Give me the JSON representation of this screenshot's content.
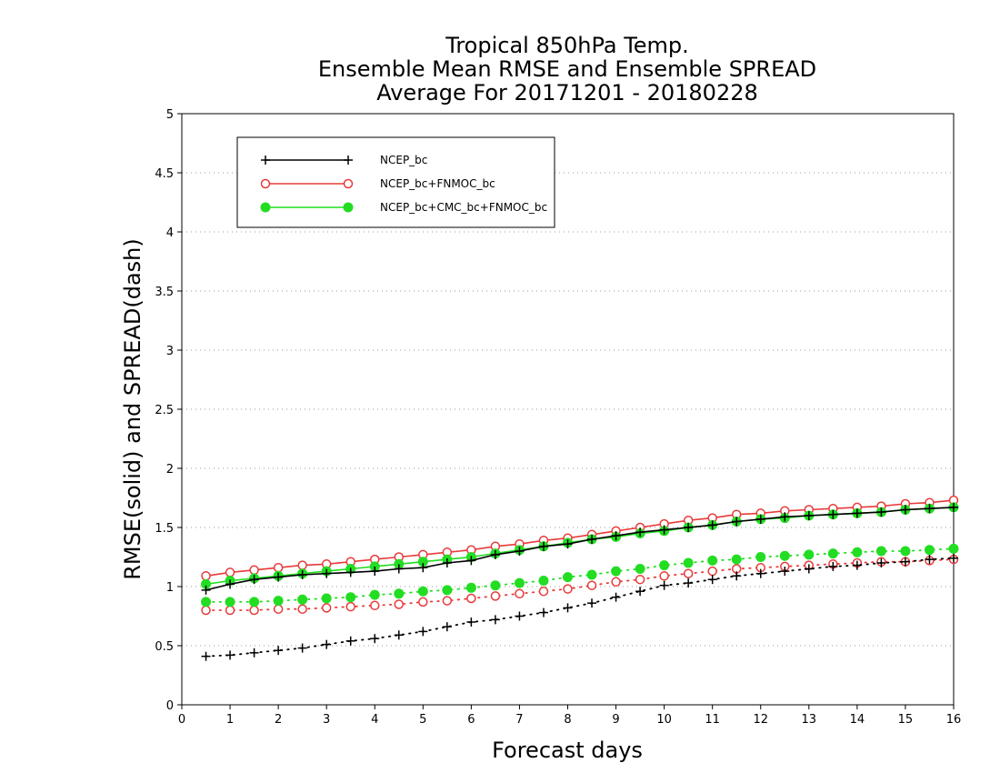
{
  "chart_data": {
    "type": "line",
    "title_lines": [
      "Tropical 850hPa Temp.",
      "Ensemble Mean RMSE and Ensemble SPREAD",
      "Average For 20171201 - 20180228"
    ],
    "xlabel": "Forecast days",
    "ylabel": "RMSE(solid) and SPREAD(dash)",
    "xlim": [
      0,
      16
    ],
    "ylim": [
      0,
      5
    ],
    "x_ticks": [
      0,
      1,
      2,
      3,
      4,
      5,
      6,
      7,
      8,
      9,
      10,
      11,
      12,
      13,
      14,
      15,
      16
    ],
    "y_ticks": [
      0,
      0.5,
      1,
      1.5,
      2,
      2.5,
      3,
      3.5,
      4,
      4.5,
      5
    ],
    "grid": "horizontal dotted",
    "legend_position": "top-left",
    "x": [
      0.5,
      1,
      1.5,
      2,
      2.5,
      3,
      3.5,
      4,
      4.5,
      5,
      5.5,
      6,
      6.5,
      7,
      7.5,
      8,
      8.5,
      9,
      9.5,
      10,
      10.5,
      11,
      11.5,
      12,
      12.5,
      13,
      13.5,
      14,
      14.5,
      15,
      15.5,
      16
    ],
    "series": [
      {
        "name": "NCEP_bc",
        "color": "#000000",
        "marker": "plus",
        "rmse": [
          0.97,
          1.02,
          1.06,
          1.08,
          1.1,
          1.11,
          1.12,
          1.13,
          1.15,
          1.16,
          1.2,
          1.22,
          1.27,
          1.3,
          1.34,
          1.36,
          1.4,
          1.43,
          1.46,
          1.48,
          1.5,
          1.52,
          1.55,
          1.57,
          1.59,
          1.6,
          1.61,
          1.62,
          1.63,
          1.65,
          1.66,
          1.67
        ],
        "spread": [
          0.41,
          0.42,
          0.44,
          0.46,
          0.48,
          0.51,
          0.54,
          0.56,
          0.59,
          0.62,
          0.66,
          0.7,
          0.72,
          0.75,
          0.78,
          0.82,
          0.86,
          0.91,
          0.96,
          1.01,
          1.03,
          1.06,
          1.09,
          1.11,
          1.13,
          1.15,
          1.17,
          1.18,
          1.2,
          1.21,
          1.23,
          1.24
        ]
      },
      {
        "name": "NCEP_bc+FNMOC_bc",
        "color": "#e83a3a",
        "marker": "open-circle",
        "rmse": [
          1.09,
          1.12,
          1.14,
          1.16,
          1.18,
          1.19,
          1.21,
          1.23,
          1.25,
          1.27,
          1.29,
          1.31,
          1.34,
          1.36,
          1.39,
          1.41,
          1.44,
          1.47,
          1.5,
          1.53,
          1.56,
          1.58,
          1.61,
          1.62,
          1.64,
          1.65,
          1.66,
          1.67,
          1.68,
          1.7,
          1.71,
          1.73
        ],
        "spread": [
          0.8,
          0.8,
          0.8,
          0.81,
          0.81,
          0.82,
          0.83,
          0.84,
          0.85,
          0.87,
          0.88,
          0.9,
          0.92,
          0.94,
          0.96,
          0.98,
          1.01,
          1.04,
          1.06,
          1.09,
          1.11,
          1.13,
          1.15,
          1.16,
          1.17,
          1.18,
          1.19,
          1.2,
          1.21,
          1.21,
          1.22,
          1.23
        ]
      },
      {
        "name": "NCEP_bc+CMC_bc+FNMOC_bc",
        "color": "#22dd22",
        "marker": "filled-circle",
        "rmse": [
          1.02,
          1.05,
          1.07,
          1.09,
          1.11,
          1.13,
          1.15,
          1.17,
          1.19,
          1.21,
          1.23,
          1.25,
          1.28,
          1.31,
          1.34,
          1.37,
          1.4,
          1.42,
          1.45,
          1.47,
          1.5,
          1.52,
          1.55,
          1.57,
          1.58,
          1.6,
          1.61,
          1.62,
          1.63,
          1.65,
          1.66,
          1.67
        ],
        "spread": [
          0.87,
          0.87,
          0.87,
          0.88,
          0.89,
          0.9,
          0.91,
          0.93,
          0.94,
          0.96,
          0.97,
          0.99,
          1.01,
          1.03,
          1.05,
          1.08,
          1.1,
          1.13,
          1.15,
          1.18,
          1.2,
          1.22,
          1.23,
          1.25,
          1.26,
          1.27,
          1.28,
          1.29,
          1.3,
          1.3,
          1.31,
          1.32
        ]
      }
    ]
  }
}
